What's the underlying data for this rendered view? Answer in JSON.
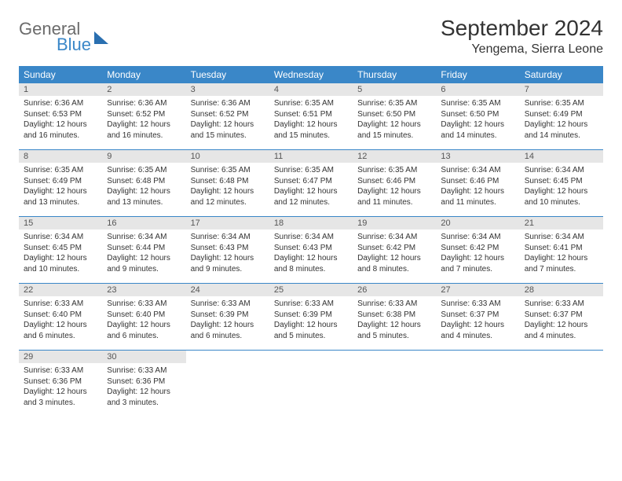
{
  "logo": {
    "line1": "General",
    "line2": "Blue"
  },
  "title": "September 2024",
  "location": "Yengema, Sierra Leone",
  "colors": {
    "header_bg": "#3a87c8",
    "header_text": "#ffffff",
    "daynum_bg": "#e6e6e6",
    "text": "#333333",
    "rule": "#3a87c8"
  },
  "weekdays": [
    "Sunday",
    "Monday",
    "Tuesday",
    "Wednesday",
    "Thursday",
    "Friday",
    "Saturday"
  ],
  "days": [
    {
      "n": "1",
      "sr": "Sunrise: 6:36 AM",
      "ss": "Sunset: 6:53 PM",
      "d1": "Daylight: 12 hours",
      "d2": "and 16 minutes."
    },
    {
      "n": "2",
      "sr": "Sunrise: 6:36 AM",
      "ss": "Sunset: 6:52 PM",
      "d1": "Daylight: 12 hours",
      "d2": "and 16 minutes."
    },
    {
      "n": "3",
      "sr": "Sunrise: 6:36 AM",
      "ss": "Sunset: 6:52 PM",
      "d1": "Daylight: 12 hours",
      "d2": "and 15 minutes."
    },
    {
      "n": "4",
      "sr": "Sunrise: 6:35 AM",
      "ss": "Sunset: 6:51 PM",
      "d1": "Daylight: 12 hours",
      "d2": "and 15 minutes."
    },
    {
      "n": "5",
      "sr": "Sunrise: 6:35 AM",
      "ss": "Sunset: 6:50 PM",
      "d1": "Daylight: 12 hours",
      "d2": "and 15 minutes."
    },
    {
      "n": "6",
      "sr": "Sunrise: 6:35 AM",
      "ss": "Sunset: 6:50 PM",
      "d1": "Daylight: 12 hours",
      "d2": "and 14 minutes."
    },
    {
      "n": "7",
      "sr": "Sunrise: 6:35 AM",
      "ss": "Sunset: 6:49 PM",
      "d1": "Daylight: 12 hours",
      "d2": "and 14 minutes."
    },
    {
      "n": "8",
      "sr": "Sunrise: 6:35 AM",
      "ss": "Sunset: 6:49 PM",
      "d1": "Daylight: 12 hours",
      "d2": "and 13 minutes."
    },
    {
      "n": "9",
      "sr": "Sunrise: 6:35 AM",
      "ss": "Sunset: 6:48 PM",
      "d1": "Daylight: 12 hours",
      "d2": "and 13 minutes."
    },
    {
      "n": "10",
      "sr": "Sunrise: 6:35 AM",
      "ss": "Sunset: 6:48 PM",
      "d1": "Daylight: 12 hours",
      "d2": "and 12 minutes."
    },
    {
      "n": "11",
      "sr": "Sunrise: 6:35 AM",
      "ss": "Sunset: 6:47 PM",
      "d1": "Daylight: 12 hours",
      "d2": "and 12 minutes."
    },
    {
      "n": "12",
      "sr": "Sunrise: 6:35 AM",
      "ss": "Sunset: 6:46 PM",
      "d1": "Daylight: 12 hours",
      "d2": "and 11 minutes."
    },
    {
      "n": "13",
      "sr": "Sunrise: 6:34 AM",
      "ss": "Sunset: 6:46 PM",
      "d1": "Daylight: 12 hours",
      "d2": "and 11 minutes."
    },
    {
      "n": "14",
      "sr": "Sunrise: 6:34 AM",
      "ss": "Sunset: 6:45 PM",
      "d1": "Daylight: 12 hours",
      "d2": "and 10 minutes."
    },
    {
      "n": "15",
      "sr": "Sunrise: 6:34 AM",
      "ss": "Sunset: 6:45 PM",
      "d1": "Daylight: 12 hours",
      "d2": "and 10 minutes."
    },
    {
      "n": "16",
      "sr": "Sunrise: 6:34 AM",
      "ss": "Sunset: 6:44 PM",
      "d1": "Daylight: 12 hours",
      "d2": "and 9 minutes."
    },
    {
      "n": "17",
      "sr": "Sunrise: 6:34 AM",
      "ss": "Sunset: 6:43 PM",
      "d1": "Daylight: 12 hours",
      "d2": "and 9 minutes."
    },
    {
      "n": "18",
      "sr": "Sunrise: 6:34 AM",
      "ss": "Sunset: 6:43 PM",
      "d1": "Daylight: 12 hours",
      "d2": "and 8 minutes."
    },
    {
      "n": "19",
      "sr": "Sunrise: 6:34 AM",
      "ss": "Sunset: 6:42 PM",
      "d1": "Daylight: 12 hours",
      "d2": "and 8 minutes."
    },
    {
      "n": "20",
      "sr": "Sunrise: 6:34 AM",
      "ss": "Sunset: 6:42 PM",
      "d1": "Daylight: 12 hours",
      "d2": "and 7 minutes."
    },
    {
      "n": "21",
      "sr": "Sunrise: 6:34 AM",
      "ss": "Sunset: 6:41 PM",
      "d1": "Daylight: 12 hours",
      "d2": "and 7 minutes."
    },
    {
      "n": "22",
      "sr": "Sunrise: 6:33 AM",
      "ss": "Sunset: 6:40 PM",
      "d1": "Daylight: 12 hours",
      "d2": "and 6 minutes."
    },
    {
      "n": "23",
      "sr": "Sunrise: 6:33 AM",
      "ss": "Sunset: 6:40 PM",
      "d1": "Daylight: 12 hours",
      "d2": "and 6 minutes."
    },
    {
      "n": "24",
      "sr": "Sunrise: 6:33 AM",
      "ss": "Sunset: 6:39 PM",
      "d1": "Daylight: 12 hours",
      "d2": "and 6 minutes."
    },
    {
      "n": "25",
      "sr": "Sunrise: 6:33 AM",
      "ss": "Sunset: 6:39 PM",
      "d1": "Daylight: 12 hours",
      "d2": "and 5 minutes."
    },
    {
      "n": "26",
      "sr": "Sunrise: 6:33 AM",
      "ss": "Sunset: 6:38 PM",
      "d1": "Daylight: 12 hours",
      "d2": "and 5 minutes."
    },
    {
      "n": "27",
      "sr": "Sunrise: 6:33 AM",
      "ss": "Sunset: 6:37 PM",
      "d1": "Daylight: 12 hours",
      "d2": "and 4 minutes."
    },
    {
      "n": "28",
      "sr": "Sunrise: 6:33 AM",
      "ss": "Sunset: 6:37 PM",
      "d1": "Daylight: 12 hours",
      "d2": "and 4 minutes."
    },
    {
      "n": "29",
      "sr": "Sunrise: 6:33 AM",
      "ss": "Sunset: 6:36 PM",
      "d1": "Daylight: 12 hours",
      "d2": "and 3 minutes."
    },
    {
      "n": "30",
      "sr": "Sunrise: 6:33 AM",
      "ss": "Sunset: 6:36 PM",
      "d1": "Daylight: 12 hours",
      "d2": "and 3 minutes."
    }
  ]
}
